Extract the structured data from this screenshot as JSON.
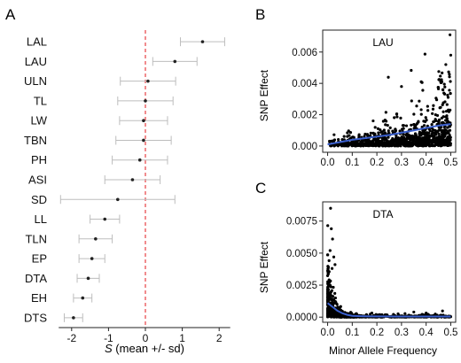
{
  "chart_data": [
    {
      "panel_label": "A",
      "type": "scatter",
      "subtype": "dot-with-error-bars",
      "xlabel_symbol": "S",
      "xlabel_rest": " (mean +/- sd)",
      "xlim": [
        -2.5,
        2.5
      ],
      "xticks": [
        -2,
        -1,
        0,
        1,
        2
      ],
      "xtick_labels": [
        "-2",
        "-1",
        "0",
        "1",
        "2"
      ],
      "reference_line": {
        "x": 0,
        "style": "dashed",
        "color": "#e31a1c"
      },
      "categories": [
        "LAL",
        "LAU",
        "ULN",
        "TL",
        "LW",
        "TBN",
        "PH",
        "ASI",
        "SD",
        "LL",
        "TLN",
        "EP",
        "DTA",
        "EH",
        "DTS"
      ],
      "means": [
        1.55,
        0.8,
        0.07,
        0.0,
        -0.05,
        -0.05,
        -0.15,
        -0.35,
        -0.75,
        -1.1,
        -1.35,
        -1.45,
        -1.55,
        -1.7,
        -1.95
      ],
      "sd": [
        0.6,
        0.6,
        0.75,
        0.75,
        0.65,
        0.75,
        0.75,
        0.75,
        1.55,
        0.4,
        0.45,
        0.35,
        0.3,
        0.25,
        0.25
      ]
    },
    {
      "panel_label": "B",
      "type": "scatter",
      "title": "LAU",
      "ylabel": "SNP Effect",
      "xlim": [
        -0.02,
        0.52
      ],
      "ylim": [
        -0.0004,
        0.0074
      ],
      "xticks": [
        0.0,
        0.1,
        0.2,
        0.3,
        0.4,
        0.5
      ],
      "xtick_labels": [
        "0.0",
        "0.1",
        "0.2",
        "0.3",
        "0.4",
        "0.5"
      ],
      "yticks": [
        0.0,
        0.002,
        0.004,
        0.006
      ],
      "ytick_labels": [
        "0.000",
        "0.002",
        "0.004",
        "0.006"
      ],
      "point_color": "#000000",
      "trend_color": "#3a5fcd",
      "trend": {
        "x": [
          0.0,
          0.05,
          0.1,
          0.15,
          0.2,
          0.25,
          0.3,
          0.35,
          0.4,
          0.45,
          0.5
        ],
        "y": [
          0.0001,
          0.00025,
          0.0004,
          0.0005,
          0.0006,
          0.0007,
          0.00085,
          0.001,
          0.00115,
          0.0013,
          0.0014
        ]
      }
    },
    {
      "panel_label": "C",
      "type": "scatter",
      "title": "DTA",
      "ylabel": "SNP Effect",
      "xlabel": "Minor Allele Frequency",
      "xlim": [
        -0.02,
        0.52
      ],
      "ylim": [
        -0.0004,
        0.009
      ],
      "xticks": [
        0.0,
        0.1,
        0.2,
        0.3,
        0.4,
        0.5
      ],
      "xtick_labels": [
        "0.0",
        "0.1",
        "0.2",
        "0.3",
        "0.4",
        "0.5"
      ],
      "yticks": [
        0.0,
        0.0025,
        0.005,
        0.0075
      ],
      "ytick_labels": [
        "0.0000",
        "0.0025",
        "0.0050",
        "0.0075"
      ],
      "point_color": "#000000",
      "trend_color": "#3a5fcd",
      "trend": {
        "x": [
          0.0,
          0.02,
          0.04,
          0.06,
          0.08,
          0.1,
          0.15,
          0.2,
          0.3,
          0.4,
          0.5
        ],
        "y": [
          0.0011,
          0.0008,
          0.0005,
          0.0003,
          0.00018,
          0.0001,
          7e-05,
          6e-05,
          5e-05,
          5e-05,
          5e-05
        ]
      }
    }
  ]
}
